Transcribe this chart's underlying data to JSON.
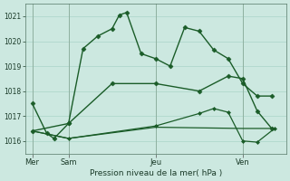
{
  "title": "Pression niveau de la mer( hPa )",
  "bg_color": "#cce8e0",
  "grid_color": "#b0d8cc",
  "line_color": "#1a5c28",
  "ylim": [
    1015.5,
    1021.5
  ],
  "yticks": [
    1016,
    1017,
    1018,
    1019,
    1020,
    1021
  ],
  "xlim": [
    0,
    18
  ],
  "day_labels": [
    "Mer",
    "Sam",
    "Jeu",
    "Ven"
  ],
  "day_positions": [
    0.5,
    3,
    9,
    15
  ],
  "vline_positions": [
    0.5,
    3,
    9,
    15
  ],
  "series": [
    {
      "x": [
        0.5,
        1.5,
        2,
        3,
        4,
        5,
        6,
        6.5,
        7,
        8,
        9,
        10,
        11,
        12,
        13,
        14,
        15,
        16,
        17
      ],
      "y": [
        1017.5,
        1016.3,
        1016.1,
        1016.7,
        1019.7,
        1020.2,
        1020.5,
        1021.05,
        1021.15,
        1019.5,
        1019.3,
        1019.0,
        1020.55,
        1020.4,
        1019.65,
        1019.3,
        1018.3,
        1017.8,
        1017.8
      ],
      "marker": "D",
      "markersize": 2.5,
      "linewidth": 1.0,
      "zorder": 3
    },
    {
      "x": [
        0.5,
        3,
        6,
        9,
        12,
        14,
        15,
        16,
        17
      ],
      "y": [
        1016.4,
        1016.7,
        1018.3,
        1018.3,
        1018.0,
        1018.6,
        1018.5,
        1017.2,
        1016.5
      ],
      "marker": "D",
      "markersize": 2.5,
      "linewidth": 1.0,
      "zorder": 3
    },
    {
      "x": [
        0.5,
        3,
        9,
        12,
        13,
        14,
        15,
        16,
        17.2
      ],
      "y": [
        1016.4,
        1016.1,
        1016.6,
        1017.1,
        1017.3,
        1017.15,
        1016.0,
        1015.95,
        1016.5
      ],
      "marker": "D",
      "markersize": 2.0,
      "linewidth": 0.9,
      "zorder": 3
    },
    {
      "x": [
        0.5,
        3,
        9,
        15,
        17.2
      ],
      "y": [
        1016.4,
        1016.1,
        1016.55,
        1016.5,
        1016.5
      ],
      "marker": null,
      "markersize": 0,
      "linewidth": 0.9,
      "zorder": 2
    }
  ]
}
